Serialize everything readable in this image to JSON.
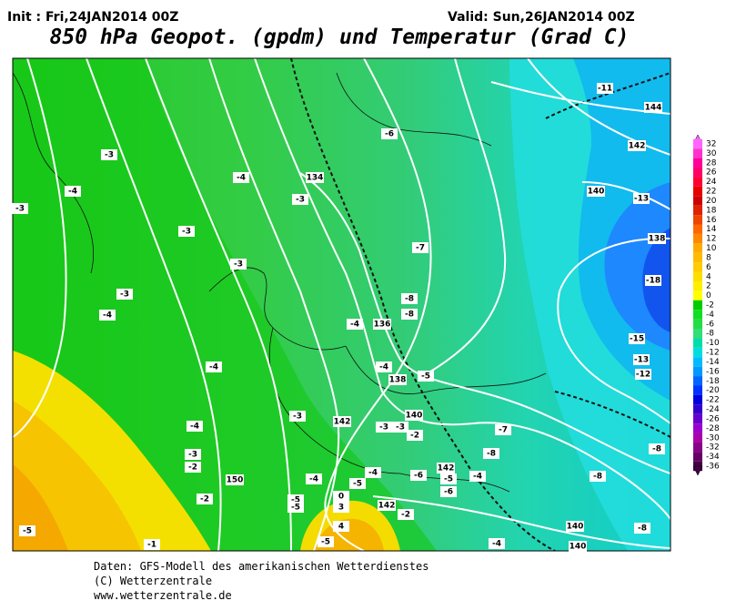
{
  "header": {
    "init": "Init : Fri,24JAN2014 00Z",
    "valid": "Valid: Sun,26JAN2014 00Z",
    "title": "850 hPa Geopot. (gpdm) und Temperatur (Grad C)"
  },
  "colorbar": {
    "labels": [
      32,
      30,
      28,
      26,
      24,
      22,
      20,
      18,
      16,
      14,
      12,
      10,
      8,
      6,
      4,
      2,
      0,
      -2,
      -4,
      -6,
      -8,
      -10,
      -12,
      -14,
      -16,
      -18,
      -20,
      -22,
      -24,
      -26,
      -28,
      -30,
      -32,
      -34,
      -36
    ],
    "colors": [
      "#ff66ff",
      "#ff33cc",
      "#ff0099",
      "#ff0066",
      "#ff0033",
      "#e60000",
      "#cc0000",
      "#dd2200",
      "#ee4400",
      "#ff6600",
      "#ff8800",
      "#ffaa00",
      "#ffbb00",
      "#ffcc00",
      "#ffdd00",
      "#ffee00",
      "#ffff00",
      "#00cc00",
      "#11dd22",
      "#22dd44",
      "#33dd77",
      "#00ddaa",
      "#00dddd",
      "#00bbff",
      "#0099ff",
      "#0066ff",
      "#0033ff",
      "#0000dd",
      "#3300cc",
      "#6600cc",
      "#9900cc",
      "#aa00aa",
      "#880088",
      "#660066",
      "#440044"
    ]
  },
  "map": {
    "temperature_labels": [
      -3,
      -4,
      -3,
      -4,
      -3,
      -3,
      -3,
      -3,
      -4,
      -7,
      -6,
      -8,
      -8,
      -4,
      -4,
      -4,
      -5,
      -4,
      -3,
      -2,
      -2,
      -3,
      -3,
      -3,
      -2,
      -7,
      -8,
      -4,
      -5,
      -4,
      -6,
      -5,
      -6,
      -4,
      -8,
      -8,
      -8,
      -4,
      -11,
      -13,
      -18,
      -15,
      -13,
      -12,
      -5,
      -5,
      -2,
      -5,
      -1,
      -5,
      4,
      0,
      3
    ],
    "geopotential_labels": [
      134,
      136,
      138,
      140,
      142,
      150,
      142,
      142,
      140,
      140,
      138,
      140,
      142,
      144
    ]
  },
  "footer": [
    "Daten: GFS-Modell des amerikanischen Wetterdienstes",
    "(C) Wetterzentrale",
    "www.wetterzentrale.de"
  ]
}
